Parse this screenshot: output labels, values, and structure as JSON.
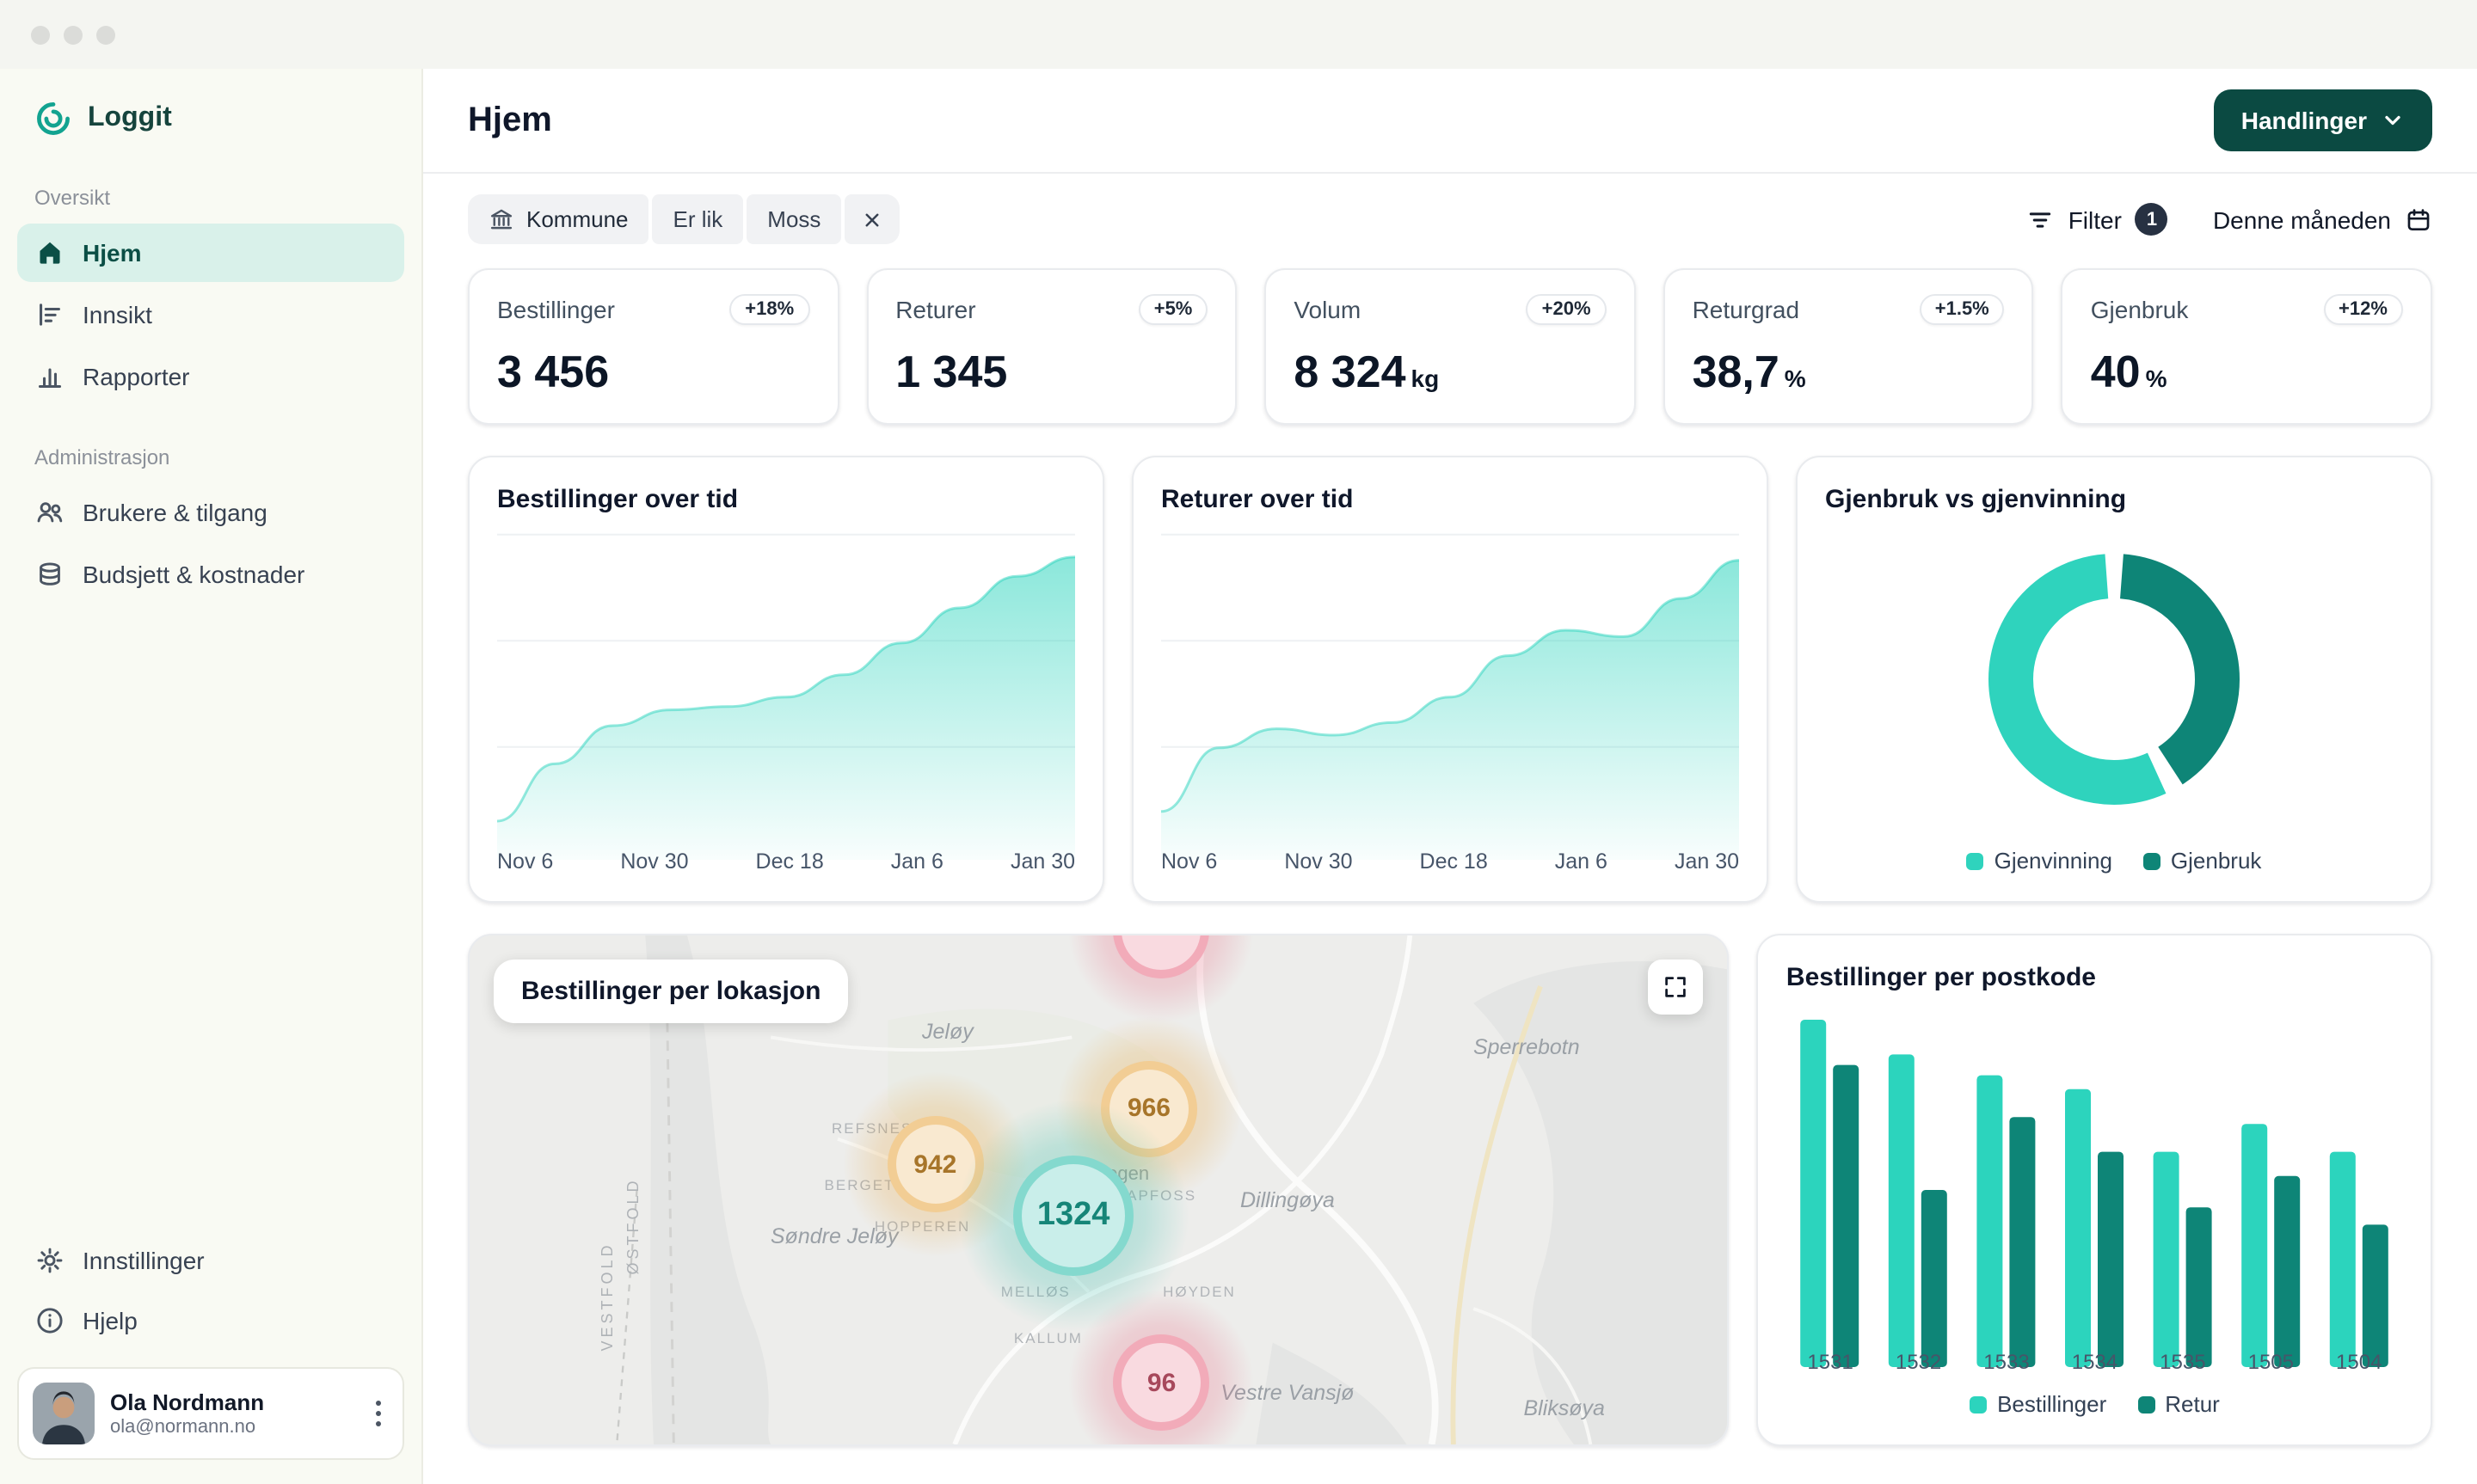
{
  "colors": {
    "accent_dark": "#0b4a42",
    "teal_light": "#2cd4bd",
    "teal_dark": "#0e8577",
    "sidebar_active_bg": "#d9f1ea",
    "bubble_orange": "#e8a33a",
    "bubble_pink": "#e8647f",
    "bubble_teal": "#1fb9a6"
  },
  "sidebar": {
    "logo": "Loggit",
    "sections": [
      {
        "label": "Oversikt",
        "items": [
          {
            "label": "Hjem",
            "icon": "home-icon",
            "active": true
          },
          {
            "label": "Innsikt",
            "icon": "insight-icon",
            "active": false
          },
          {
            "label": "Rapporter",
            "icon": "report-icon",
            "active": false
          }
        ]
      },
      {
        "label": "Administrasjon",
        "items": [
          {
            "label": "Brukere & tilgang",
            "icon": "users-icon",
            "active": false
          },
          {
            "label": "Budsjett & kostnader",
            "icon": "budget-icon",
            "active": false
          }
        ]
      }
    ],
    "footer_items": [
      {
        "label": "Innstillinger",
        "icon": "gear-icon"
      },
      {
        "label": "Hjelp",
        "icon": "help-icon"
      }
    ],
    "user": {
      "name": "Ola Nordmann",
      "email": "ola@normann.no"
    }
  },
  "header": {
    "title": "Hjem",
    "actions_label": "Handlinger"
  },
  "filter_bar": {
    "chip_field": "Kommune",
    "chip_operator": "Er lik",
    "chip_value": "Moss",
    "filter_label": "Filter",
    "filter_count": "1",
    "period_label": "Denne måneden"
  },
  "kpis": [
    {
      "label": "Bestillinger",
      "badge": "+18%",
      "value": "3 456",
      "unit": ""
    },
    {
      "label": "Returer",
      "badge": "+5%",
      "value": "1 345",
      "unit": ""
    },
    {
      "label": "Volum",
      "badge": "+20%",
      "value": "8 324",
      "unit": "kg"
    },
    {
      "label": "Returgrad",
      "badge": "+1.5%",
      "value": "38,7",
      "unit": "%"
    },
    {
      "label": "Gjenbruk",
      "badge": "+12%",
      "value": "40",
      "unit": "%"
    }
  ],
  "chart_data": [
    {
      "type": "area",
      "title": "Bestillinger over tid",
      "x_ticks": [
        "Nov 6",
        "Nov 30",
        "Dec 18",
        "Jan 6",
        "Jan 30"
      ],
      "values": [
        10,
        28,
        40,
        45,
        46,
        49,
        56,
        66,
        77,
        87,
        93
      ],
      "ylim": [
        0,
        100
      ],
      "grid": true,
      "color": "#2cd4bd"
    },
    {
      "type": "area",
      "title": "Returer over tid",
      "x_ticks": [
        "Nov 6",
        "Nov 30",
        "Dec 18",
        "Jan 6",
        "Jan 30"
      ],
      "values": [
        13,
        33,
        39,
        37,
        41,
        49,
        62,
        70,
        68,
        80,
        92
      ],
      "ylim": [
        0,
        100
      ],
      "grid": true,
      "color": "#2cd4bd"
    },
    {
      "type": "donut",
      "title": "Gjenbruk vs gjenvinning",
      "legend_position": "bottom",
      "slices": [
        {
          "label": "Gjenvinning",
          "value": 58,
          "color": "#2fd3bd"
        },
        {
          "label": "Gjenbruk",
          "value": 42,
          "color": "#0e8577"
        }
      ]
    },
    {
      "type": "map",
      "title": "Bestillinger per lokasjon",
      "bubbles": [
        {
          "value": "",
          "x": 55,
          "y": -1,
          "size": 56,
          "color": "#e8647f"
        },
        {
          "value": "966",
          "x": 54,
          "y": 34,
          "size": 56,
          "color": "#e8a33a"
        },
        {
          "value": "942",
          "x": 37,
          "y": 45,
          "size": 56,
          "color": "#e8a33a"
        },
        {
          "value": "1324",
          "x": 48,
          "y": 55,
          "size": 70,
          "color": "#1fb9a6"
        },
        {
          "value": "96",
          "x": 55,
          "y": 88,
          "size": 56,
          "color": "#e8647f"
        }
      ],
      "labels": [
        {
          "text": "Jeløy",
          "x": 38,
          "y": 19,
          "kind": "area"
        },
        {
          "text": "Sperrebotn",
          "x": 84,
          "y": 22,
          "kind": "area"
        },
        {
          "text": "Søndre Jeløy",
          "x": 29,
          "y": 59,
          "kind": "area"
        },
        {
          "text": "Dillingøya",
          "x": 65,
          "y": 52,
          "kind": "area"
        },
        {
          "text": "Vestre Vansjø",
          "x": 65,
          "y": 90,
          "kind": "area"
        },
        {
          "text": "Bliksøya",
          "x": 87,
          "y": 93,
          "kind": "area"
        },
        {
          "text": "rrebogen",
          "x": 51,
          "y": 47,
          "kind": "place"
        },
        {
          "text": "REFSNES",
          "x": 32,
          "y": 38,
          "kind": "small"
        },
        {
          "text": "BERGET",
          "x": 31,
          "y": 49,
          "kind": "small"
        },
        {
          "text": "HOPPEREN",
          "x": 36,
          "y": 57,
          "kind": "small"
        },
        {
          "text": "MELLØS",
          "x": 45,
          "y": 70,
          "kind": "small"
        },
        {
          "text": "KALLUM",
          "x": 46,
          "y": 79,
          "kind": "small"
        },
        {
          "text": "HØYDEN",
          "x": 58,
          "y": 70,
          "kind": "small"
        },
        {
          "text": "APFOSS",
          "x": 55,
          "y": 51,
          "kind": "small"
        },
        {
          "text": "ØSTFOLD",
          "x": 13,
          "y": 57,
          "kind": "vertical"
        },
        {
          "text": "VESTFOLD",
          "x": 11,
          "y": 71,
          "kind": "vertical"
        }
      ]
    },
    {
      "type": "bar",
      "title": "Bestillinger per postkode",
      "categories": [
        "1531",
        "1532",
        "1533",
        "1534",
        "1535",
        "1505",
        "1504"
      ],
      "series": [
        {
          "name": "Bestillinger",
          "color": "#2cd4bd",
          "values": [
            100,
            90,
            84,
            80,
            62,
            70,
            62
          ]
        },
        {
          "name": "Retur",
          "color": "#0e8577",
          "values": [
            87,
            51,
            72,
            62,
            46,
            55,
            41
          ]
        }
      ],
      "ylim": [
        0,
        100
      ],
      "legend_position": "bottom"
    }
  ]
}
